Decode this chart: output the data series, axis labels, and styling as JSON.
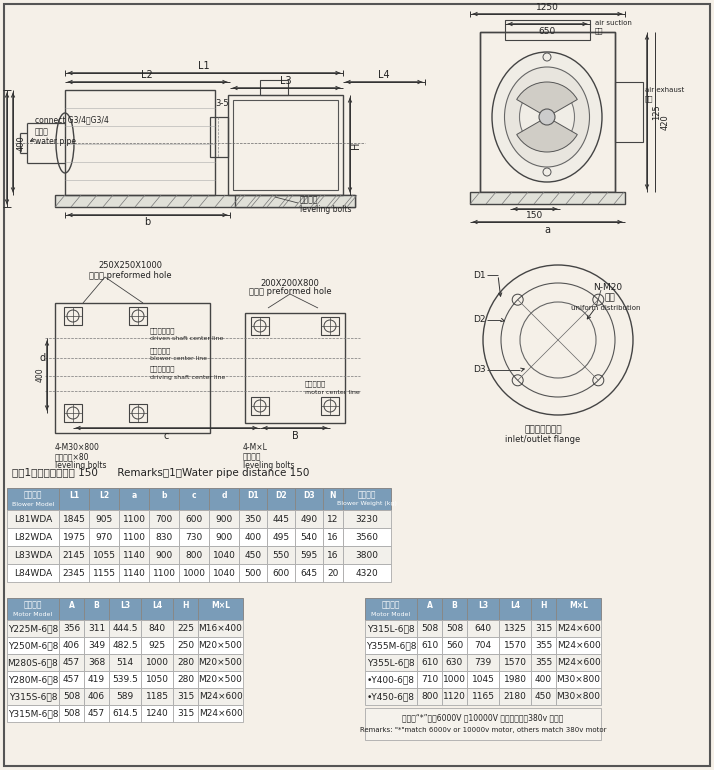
{
  "bg_color": "#f5f0e8",
  "table_header_bg": "#7a9cb8",
  "note_text": "注：1、输水管间距为 150      Remarks：1、Water pipe distance 150",
  "blower_headers_cn": [
    "风机型号",
    "L1",
    "L2",
    "a",
    "b",
    "c",
    "d",
    "D1",
    "D2",
    "D3",
    "N",
    "主机重量"
  ],
  "blower_headers_en": [
    "Blower Model",
    "",
    "",
    "",
    "",
    "",
    "",
    "",
    "",
    "",
    "",
    "Blower Weight (kg)"
  ],
  "blower_rows": [
    [
      "L81WDA",
      "1845",
      "905",
      "1100",
      "700",
      "600",
      "900",
      "350",
      "445",
      "490",
      "12",
      "3230"
    ],
    [
      "L82WDA",
      "1975",
      "970",
      "1100",
      "830",
      "730",
      "900",
      "400",
      "495",
      "540",
      "16",
      "3560"
    ],
    [
      "L83WDA",
      "2145",
      "1055",
      "1140",
      "900",
      "800",
      "1040",
      "450",
      "550",
      "595",
      "16",
      "3800"
    ],
    [
      "L84WDA",
      "2345",
      "1155",
      "1140",
      "1100",
      "1000",
      "1040",
      "500",
      "600",
      "645",
      "20",
      "4320"
    ]
  ],
  "motor_headers_cn": [
    "电机型号",
    "A",
    "B",
    "L3",
    "L4",
    "H",
    "M×L"
  ],
  "motor_headers_en": [
    "Motor Model",
    "",
    "",
    "",
    "",
    "",
    ""
  ],
  "motor_rows_left": [
    [
      "Y225M-6、8",
      "356",
      "311",
      "444.5",
      "840",
      "225",
      "M16×400"
    ],
    [
      "Y250M-6、8",
      "406",
      "349",
      "482.5",
      "925",
      "250",
      "M20×500"
    ],
    [
      "M280S-6、8",
      "457",
      "368",
      "514",
      "1000",
      "280",
      "M20×500"
    ],
    [
      "Y280M-6、8",
      "457",
      "419",
      "539.5",
      "1050",
      "280",
      "M20×500"
    ],
    [
      "Y315S-6、8",
      "508",
      "406",
      "589",
      "1185",
      "315",
      "M24×600"
    ],
    [
      "Y315M-6、8",
      "508",
      "457",
      "614.5",
      "1240",
      "315",
      "M24×600"
    ]
  ],
  "motor_rows_right": [
    [
      "Y315L-6、8",
      "508",
      "508",
      "640",
      "1325",
      "315",
      "M24×600"
    ],
    [
      "Y355M-6、8",
      "610",
      "560",
      "704",
      "1570",
      "355",
      "M24×600"
    ],
    [
      "Y355L-6、8",
      "610",
      "630",
      "739",
      "1570",
      "355",
      "M24×600"
    ],
    [
      "•Y400-6、8",
      "710",
      "1000",
      "1045",
      "1980",
      "400",
      "M30×800"
    ],
    [
      "•Y450-6、8",
      "800",
      "1120",
      "1165",
      "2180",
      "450",
      "M30×800"
    ]
  ],
  "motor_note_cn": "注：带“*”适用6000V 或10000V 电机，其余为380v 电机。",
  "motor_note_en": "Remarks: \"*\"match 6000v or 10000v motor, others match 380v motor"
}
